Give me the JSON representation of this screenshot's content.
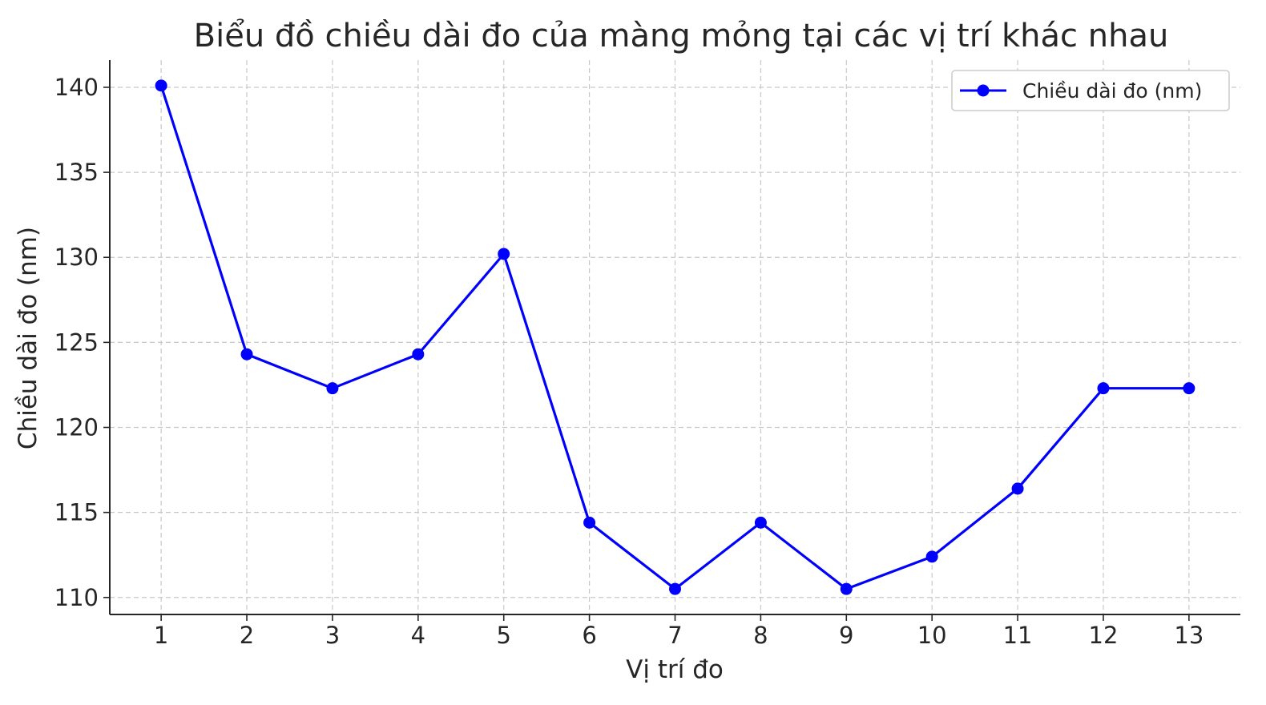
{
  "chart_data": {
    "type": "line",
    "title": "Biểu đồ chiều dài đo của màng mỏng tại các vị trí khác nhau",
    "xlabel": "Vị trí đo",
    "ylabel": "Chiều dài đo (nm)",
    "x": [
      1,
      2,
      3,
      4,
      5,
      6,
      7,
      8,
      9,
      10,
      11,
      12,
      13
    ],
    "x_tick_labels": [
      "1",
      "2",
      "3",
      "4",
      "5",
      "6",
      "7",
      "8",
      "9",
      "10",
      "11",
      "12",
      "13"
    ],
    "series": [
      {
        "name": "Chiều dài đo (nm)",
        "values": [
          140.1,
          124.3,
          122.3,
          124.3,
          130.2,
          114.4,
          110.5,
          114.4,
          110.5,
          112.4,
          116.4,
          122.3,
          122.3
        ],
        "color": "#0000ff",
        "marker": "circle"
      }
    ],
    "xlim": [
      0.4,
      13.6
    ],
    "ylim": [
      109,
      141.6
    ],
    "y_ticks": [
      110,
      115,
      120,
      125,
      130,
      135,
      140
    ],
    "y_tick_labels": [
      "110",
      "115",
      "120",
      "125",
      "130",
      "135",
      "140"
    ],
    "grid": true,
    "grid_style": "dashed",
    "legend_position": "top-right",
    "spines": "left-bottom"
  }
}
